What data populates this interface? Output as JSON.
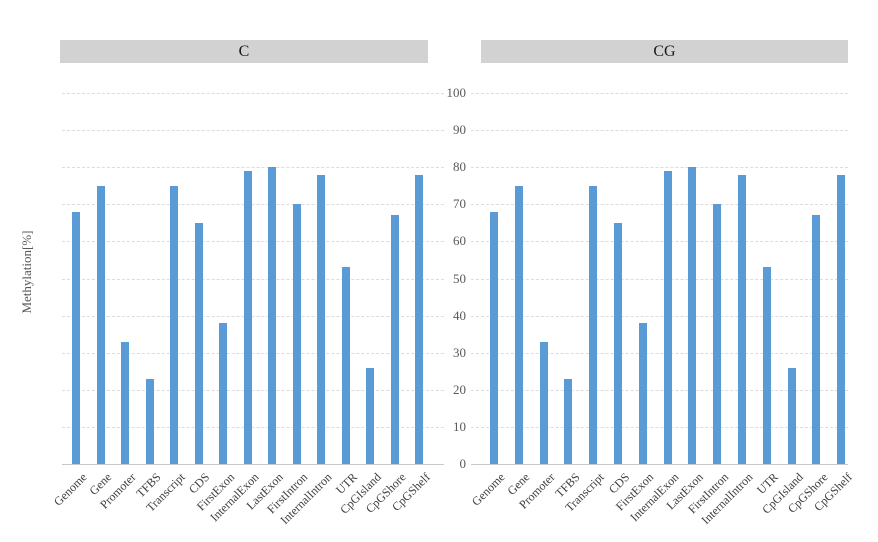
{
  "chart_data": [
    {
      "type": "bar",
      "title": "C",
      "categories": [
        "Genome",
        "Gene",
        "Promoter",
        "TFBS",
        "Transcript",
        "CDS",
        "FirstExon",
        "InternalExon",
        "LastExon",
        "FirstIntron",
        "InternalIntron",
        "UTR",
        "CpGIsland",
        "CpGShore",
        "CpGShelf"
      ],
      "values": [
        68,
        75,
        33,
        23,
        75,
        65,
        38,
        79,
        80,
        70,
        78,
        53,
        26,
        67,
        78
      ],
      "xlabel": "",
      "ylabel": "Methylation[%]",
      "ylim": [
        0,
        100
      ],
      "yticks": [
        0,
        10,
        20,
        30,
        40,
        50,
        60,
        70,
        80,
        90,
        100
      ],
      "grid": true,
      "legend": "none"
    },
    {
      "type": "bar",
      "title": "CG",
      "categories": [
        "Genome",
        "Gene",
        "Promoter",
        "TFBS",
        "Transcript",
        "CDS",
        "FirstExon",
        "InternalExon",
        "LastExon",
        "FirstIntron",
        "InternalIntron",
        "UTR",
        "CpGIsland",
        "CpGShore",
        "CpGShelf"
      ],
      "values": [
        68,
        75,
        33,
        23,
        75,
        65,
        38,
        79,
        80,
        70,
        78,
        53,
        26,
        67,
        78
      ],
      "xlabel": "",
      "ylabel": "",
      "ylim": [
        0,
        100
      ],
      "yticks": [
        0,
        10,
        20,
        30,
        40,
        50,
        60,
        70,
        80,
        90,
        100
      ],
      "grid": true,
      "legend": "none"
    }
  ],
  "colors": {
    "bar": "#5b9bd5",
    "header_bg": "#d2d2d2",
    "header_text": "#1a1a1a",
    "gridline": "#dcdcdc",
    "baseline": "#c8c8c8",
    "tick_text": "#595959",
    "category_text": "#404040"
  }
}
